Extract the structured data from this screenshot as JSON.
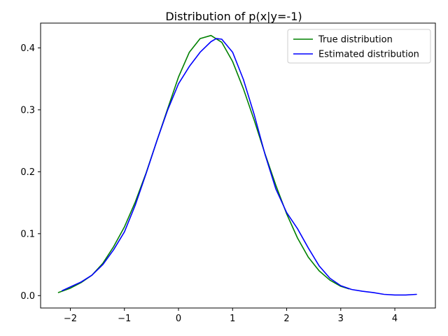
{
  "chart_data": {
    "type": "line",
    "title": "Distribution of p(x|y=-1)",
    "xlabel": "",
    "ylabel": "",
    "xlim": [
      -2.55,
      4.75
    ],
    "ylim": [
      -0.02,
      0.44
    ],
    "xticks": [
      -2,
      -1,
      0,
      1,
      2,
      3,
      4
    ],
    "xtick_labels": [
      "−2",
      "−1",
      "0",
      "1",
      "2",
      "3",
      "4"
    ],
    "yticks": [
      0.0,
      0.1,
      0.2,
      0.3,
      0.4
    ],
    "ytick_labels": [
      "0.0",
      "0.1",
      "0.2",
      "0.3",
      "0.4"
    ],
    "grid": false,
    "legend_position": "top-right",
    "series": [
      {
        "name": "True distribution",
        "color": "#008000",
        "x": [
          -2.22,
          -2.0,
          -1.8,
          -1.6,
          -1.4,
          -1.2,
          -1.0,
          -0.8,
          -0.6,
          -0.4,
          -0.2,
          0.0,
          0.2,
          0.4,
          0.6,
          0.8,
          1.0,
          1.2,
          1.4,
          1.6,
          1.8,
          2.0,
          2.2,
          2.4,
          2.6,
          2.8,
          3.0,
          3.15
        ],
        "values": [
          0.005,
          0.012,
          0.021,
          0.033,
          0.052,
          0.079,
          0.111,
          0.151,
          0.198,
          0.25,
          0.302,
          0.353,
          0.393,
          0.415,
          0.42,
          0.409,
          0.378,
          0.334,
          0.283,
          0.229,
          0.178,
          0.132,
          0.093,
          0.062,
          0.04,
          0.025,
          0.015,
          0.011
        ]
      },
      {
        "name": "Estimated distribution",
        "color": "#0000ff",
        "x": [
          -2.15,
          -2.0,
          -1.8,
          -1.6,
          -1.4,
          -1.2,
          -1.0,
          -0.8,
          -0.6,
          -0.4,
          -0.2,
          0.0,
          0.2,
          0.4,
          0.6,
          0.7,
          0.8,
          1.0,
          1.2,
          1.4,
          1.6,
          1.8,
          2.0,
          2.2,
          2.4,
          2.6,
          2.8,
          3.0,
          3.2,
          3.4,
          3.6,
          3.8,
          4.0,
          4.2,
          4.4
        ],
        "values": [
          0.008,
          0.014,
          0.022,
          0.033,
          0.05,
          0.074,
          0.103,
          0.146,
          0.197,
          0.25,
          0.3,
          0.342,
          0.37,
          0.393,
          0.41,
          0.415,
          0.414,
          0.393,
          0.349,
          0.292,
          0.228,
          0.172,
          0.134,
          0.108,
          0.077,
          0.048,
          0.028,
          0.016,
          0.01,
          0.007,
          0.005,
          0.002,
          0.001,
          0.001,
          0.002
        ]
      }
    ]
  }
}
